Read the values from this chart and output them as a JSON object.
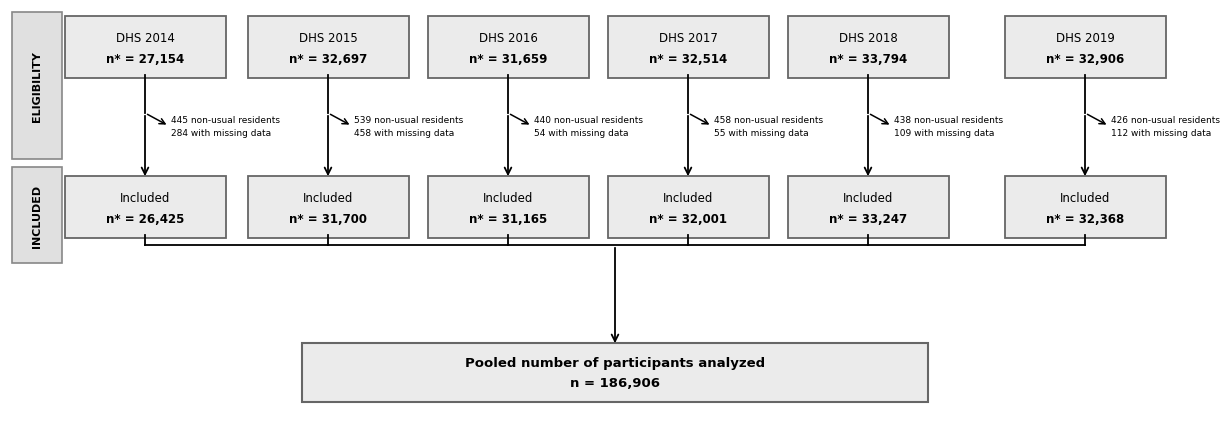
{
  "years": [
    "DHS 2014",
    "DHS 2015",
    "DHS 2016",
    "DHS 2017",
    "DHS 2018",
    "DHS 2019"
  ],
  "eligibility_n": [
    "27,154",
    "32,697",
    "31,659",
    "32,514",
    "33,794",
    "32,906"
  ],
  "excluded_line1": [
    "445 non-usual residents",
    "539 non-usual residents",
    "440 non-usual residents",
    "458 non-usual residents",
    "438 non-usual residents",
    "426 non-usual residents"
  ],
  "excluded_line2": [
    "284 with missing data",
    "458 with missing data",
    "54 with missing data",
    "55 with missing data",
    "109 with missing data",
    "112 with missing data"
  ],
  "included_n": [
    "26,425",
    "31,700",
    "31,165",
    "32,001",
    "33,247",
    "32,368"
  ],
  "pooled_line1": "Pooled number of participants analyzed",
  "pooled_line2": "n = 186,906",
  "label_eligibility": "ELIGIBILITY",
  "label_included": "INCLUDED",
  "bg_color": "#ffffff",
  "box_fill": "#ebebeb",
  "box_edge": "#666666",
  "text_color": "#000000",
  "arrow_color": "#000000",
  "side_label_bg": "#e0e0e0",
  "side_label_edge": "#888888"
}
